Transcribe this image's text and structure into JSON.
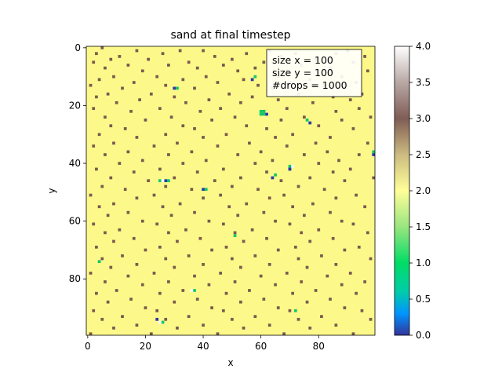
{
  "chart_data": {
    "type": "heatmap",
    "title": "sand at final timestep",
    "xlabel": "x",
    "ylabel": "y",
    "grid_size": [
      100,
      100
    ],
    "xlim": [
      -0.5,
      99.5
    ],
    "ylim": [
      99.5,
      -0.5
    ],
    "x_ticks": [
      0,
      20,
      40,
      60,
      80
    ],
    "y_ticks": [
      0,
      20,
      40,
      60,
      80
    ],
    "background_value": 2,
    "cells_value_3": [
      [
        5,
        0
      ],
      [
        17,
        1
      ],
      [
        32,
        1
      ],
      [
        40,
        1
      ],
      [
        63,
        1
      ],
      [
        90,
        1
      ],
      [
        3,
        2
      ],
      [
        26,
        2
      ],
      [
        55,
        2
      ],
      [
        72,
        2
      ],
      [
        86,
        2
      ],
      [
        11,
        3
      ],
      [
        44,
        3
      ],
      [
        67,
        3
      ],
      [
        96,
        3
      ],
      [
        8,
        4
      ],
      [
        21,
        4
      ],
      [
        50,
        4
      ],
      [
        79,
        4
      ],
      [
        2,
        5
      ],
      [
        35,
        5
      ],
      [
        61,
        5
      ],
      [
        92,
        5
      ],
      [
        14,
        6
      ],
      [
        28,
        6
      ],
      [
        47,
        6
      ],
      [
        74,
        6
      ],
      [
        6,
        7
      ],
      [
        38,
        7
      ],
      [
        58,
        7
      ],
      [
        84,
        7
      ],
      [
        19,
        8
      ],
      [
        52,
        8
      ],
      [
        69,
        8
      ],
      [
        97,
        8
      ],
      [
        9,
        10
      ],
      [
        24,
        10
      ],
      [
        41,
        10
      ],
      [
        66,
        10
      ],
      [
        88,
        10
      ],
      [
        4,
        11
      ],
      [
        33,
        11
      ],
      [
        54,
        11
      ],
      [
        77,
        11
      ],
      [
        16,
        12
      ],
      [
        45,
        12
      ],
      [
        70,
        12
      ],
      [
        93,
        12
      ],
      [
        1,
        13
      ],
      [
        27,
        13
      ],
      [
        59,
        13
      ],
      [
        82,
        13
      ],
      [
        12,
        14
      ],
      [
        37,
        14
      ],
      [
        64,
        14
      ],
      [
        7,
        16
      ],
      [
        22,
        16
      ],
      [
        49,
        16
      ],
      [
        73,
        16
      ],
      [
        95,
        16
      ],
      [
        3,
        17
      ],
      [
        30,
        17
      ],
      [
        57,
        17
      ],
      [
        85,
        17
      ],
      [
        18,
        18
      ],
      [
        42,
        18
      ],
      [
        66,
        18
      ],
      [
        91,
        18
      ],
      [
        10,
        19
      ],
      [
        34,
        19
      ],
      [
        53,
        19
      ],
      [
        78,
        19
      ],
      [
        2,
        21
      ],
      [
        25,
        21
      ],
      [
        46,
        21
      ],
      [
        69,
        21
      ],
      [
        94,
        21
      ],
      [
        15,
        22
      ],
      [
        39,
        22
      ],
      [
        61,
        22
      ],
      [
        86,
        22
      ],
      [
        6,
        24
      ],
      [
        29,
        24
      ],
      [
        51,
        24
      ],
      [
        75,
        24
      ],
      [
        98,
        24
      ],
      [
        20,
        25
      ],
      [
        43,
        25
      ],
      [
        67,
        25
      ],
      [
        88,
        25
      ],
      [
        8,
        27
      ],
      [
        33,
        27
      ],
      [
        55,
        27
      ],
      [
        80,
        27
      ],
      [
        13,
        28
      ],
      [
        37,
        28
      ],
      [
        62,
        28
      ],
      [
        92,
        28
      ],
      [
        4,
        30
      ],
      [
        27,
        30
      ],
      [
        48,
        30
      ],
      [
        71,
        30
      ],
      [
        17,
        31
      ],
      [
        40,
        31
      ],
      [
        65,
        31
      ],
      [
        84,
        31
      ],
      [
        9,
        33
      ],
      [
        31,
        33
      ],
      [
        56,
        33
      ],
      [
        79,
        33
      ],
      [
        97,
        33
      ],
      [
        2,
        34
      ],
      [
        23,
        34
      ],
      [
        45,
        34
      ],
      [
        69,
        34
      ],
      [
        14,
        36
      ],
      [
        36,
        36
      ],
      [
        60,
        36
      ],
      [
        83,
        36
      ],
      [
        6,
        37
      ],
      [
        28,
        37
      ],
      [
        52,
        37
      ],
      [
        75,
        37
      ],
      [
        94,
        37
      ],
      [
        19,
        39
      ],
      [
        41,
        39
      ],
      [
        64,
        39
      ],
      [
        87,
        39
      ],
      [
        11,
        40
      ],
      [
        33,
        40
      ],
      [
        58,
        40
      ],
      [
        80,
        40
      ],
      [
        3,
        42
      ],
      [
        25,
        42
      ],
      [
        47,
        42
      ],
      [
        70,
        42
      ],
      [
        91,
        42
      ],
      [
        16,
        43
      ],
      [
        38,
        43
      ],
      [
        62,
        43
      ],
      [
        85,
        43
      ],
      [
        8,
        45
      ],
      [
        30,
        45
      ],
      [
        53,
        45
      ],
      [
        77,
        45
      ],
      [
        99,
        45
      ],
      [
        21,
        46
      ],
      [
        44,
        46
      ],
      [
        67,
        46
      ],
      [
        89,
        46
      ],
      [
        5,
        48
      ],
      [
        27,
        48
      ],
      [
        50,
        48
      ],
      [
        73,
        48
      ],
      [
        13,
        49
      ],
      [
        36,
        49
      ],
      [
        59,
        49
      ],
      [
        82,
        49
      ],
      [
        1,
        51
      ],
      [
        23,
        51
      ],
      [
        46,
        51
      ],
      [
        68,
        51
      ],
      [
        93,
        51
      ],
      [
        17,
        52
      ],
      [
        40,
        52
      ],
      [
        63,
        52
      ],
      [
        86,
        52
      ],
      [
        9,
        54
      ],
      [
        32,
        54
      ],
      [
        55,
        54
      ],
      [
        78,
        54
      ],
      [
        4,
        55
      ],
      [
        26,
        55
      ],
      [
        49,
        55
      ],
      [
        71,
        55
      ],
      [
        96,
        55
      ],
      [
        14,
        57
      ],
      [
        37,
        57
      ],
      [
        61,
        57
      ],
      [
        84,
        57
      ],
      [
        7,
        58
      ],
      [
        29,
        58
      ],
      [
        52,
        58
      ],
      [
        75,
        58
      ],
      [
        19,
        60
      ],
      [
        42,
        60
      ],
      [
        65,
        60
      ],
      [
        88,
        60
      ],
      [
        2,
        61
      ],
      [
        24,
        61
      ],
      [
        47,
        61
      ],
      [
        70,
        61
      ],
      [
        92,
        61
      ],
      [
        11,
        63
      ],
      [
        34,
        63
      ],
      [
        57,
        63
      ],
      [
        80,
        63
      ],
      [
        6,
        64
      ],
      [
        28,
        64
      ],
      [
        51,
        64
      ],
      [
        74,
        64
      ],
      [
        97,
        64
      ],
      [
        16,
        66
      ],
      [
        39,
        66
      ],
      [
        62,
        66
      ],
      [
        85,
        66
      ],
      [
        9,
        67
      ],
      [
        31,
        67
      ],
      [
        54,
        67
      ],
      [
        77,
        67
      ],
      [
        3,
        69
      ],
      [
        25,
        69
      ],
      [
        48,
        69
      ],
      [
        72,
        69
      ],
      [
        94,
        69
      ],
      [
        20,
        70
      ],
      [
        43,
        70
      ],
      [
        66,
        70
      ],
      [
        89,
        70
      ],
      [
        12,
        72
      ],
      [
        35,
        72
      ],
      [
        58,
        72
      ],
      [
        81,
        72
      ],
      [
        5,
        73
      ],
      [
        27,
        73
      ],
      [
        50,
        73
      ],
      [
        73,
        73
      ],
      [
        98,
        73
      ],
      [
        17,
        75
      ],
      [
        40,
        75
      ],
      [
        63,
        75
      ],
      [
        86,
        75
      ],
      [
        8,
        76
      ],
      [
        30,
        76
      ],
      [
        53,
        76
      ],
      [
        76,
        76
      ],
      [
        1,
        78
      ],
      [
        23,
        78
      ],
      [
        46,
        78
      ],
      [
        69,
        78
      ],
      [
        91,
        78
      ],
      [
        14,
        79
      ],
      [
        37,
        79
      ],
      [
        60,
        79
      ],
      [
        83,
        79
      ],
      [
        6,
        81
      ],
      [
        28,
        81
      ],
      [
        51,
        81
      ],
      [
        74,
        81
      ],
      [
        96,
        81
      ],
      [
        19,
        82
      ],
      [
        42,
        82
      ],
      [
        65,
        82
      ],
      [
        88,
        82
      ],
      [
        10,
        84
      ],
      [
        33,
        84
      ],
      [
        56,
        84
      ],
      [
        79,
        84
      ],
      [
        3,
        85
      ],
      [
        25,
        85
      ],
      [
        48,
        85
      ],
      [
        71,
        85
      ],
      [
        93,
        85
      ],
      [
        15,
        87
      ],
      [
        38,
        87
      ],
      [
        61,
        87
      ],
      [
        84,
        87
      ],
      [
        7,
        88
      ],
      [
        30,
        88
      ],
      [
        53,
        88
      ],
      [
        76,
        88
      ],
      [
        20,
        90
      ],
      [
        43,
        90
      ],
      [
        66,
        90
      ],
      [
        89,
        90
      ],
      [
        2,
        91
      ],
      [
        24,
        91
      ],
      [
        47,
        91
      ],
      [
        70,
        91
      ],
      [
        95,
        91
      ],
      [
        12,
        93
      ],
      [
        35,
        93
      ],
      [
        58,
        93
      ],
      [
        81,
        93
      ],
      [
        5,
        94
      ],
      [
        27,
        94
      ],
      [
        50,
        94
      ],
      [
        73,
        94
      ],
      [
        98,
        94
      ],
      [
        17,
        96
      ],
      [
        40,
        96
      ],
      [
        63,
        96
      ],
      [
        86,
        96
      ],
      [
        9,
        97
      ],
      [
        31,
        97
      ],
      [
        54,
        97
      ],
      [
        77,
        97
      ],
      [
        1,
        99
      ],
      [
        22,
        99
      ],
      [
        45,
        99
      ],
      [
        68,
        99
      ],
      [
        92,
        99
      ]
    ],
    "cells_value_1": [
      [
        58,
        10
      ],
      [
        31,
        14
      ],
      [
        60,
        22
      ],
      [
        61,
        22
      ],
      [
        60,
        23
      ],
      [
        61,
        23
      ],
      [
        76,
        25
      ],
      [
        4,
        74
      ],
      [
        28,
        46
      ],
      [
        41,
        49
      ],
      [
        70,
        41
      ],
      [
        99,
        36
      ],
      [
        51,
        65
      ],
      [
        72,
        91
      ],
      [
        37,
        84
      ],
      [
        65,
        44
      ],
      [
        25,
        46
      ],
      [
        26,
        95
      ]
    ],
    "cells_value_0": [
      [
        57,
        11
      ],
      [
        30,
        14
      ],
      [
        62,
        23
      ],
      [
        77,
        26
      ],
      [
        27,
        46
      ],
      [
        40,
        49
      ],
      [
        70,
        42
      ],
      [
        99,
        37
      ],
      [
        64,
        45
      ],
      [
        24,
        94
      ]
    ],
    "cells_value_4": [
      [
        26,
        46
      ],
      [
        25,
        95
      ],
      [
        71,
        41
      ],
      [
        36,
        84
      ]
    ],
    "colorbar": {
      "colormap": "terrain",
      "vmin": 0.0,
      "vmax": 4.0,
      "ticks": [
        "0.0",
        "0.5",
        "1.0",
        "1.5",
        "2.0",
        "2.5",
        "3.0",
        "3.5",
        "4.0"
      ]
    },
    "legend": {
      "position": "upper right",
      "lines": [
        "size x = 100",
        "size y = 100",
        "#drops = 1000"
      ]
    }
  }
}
